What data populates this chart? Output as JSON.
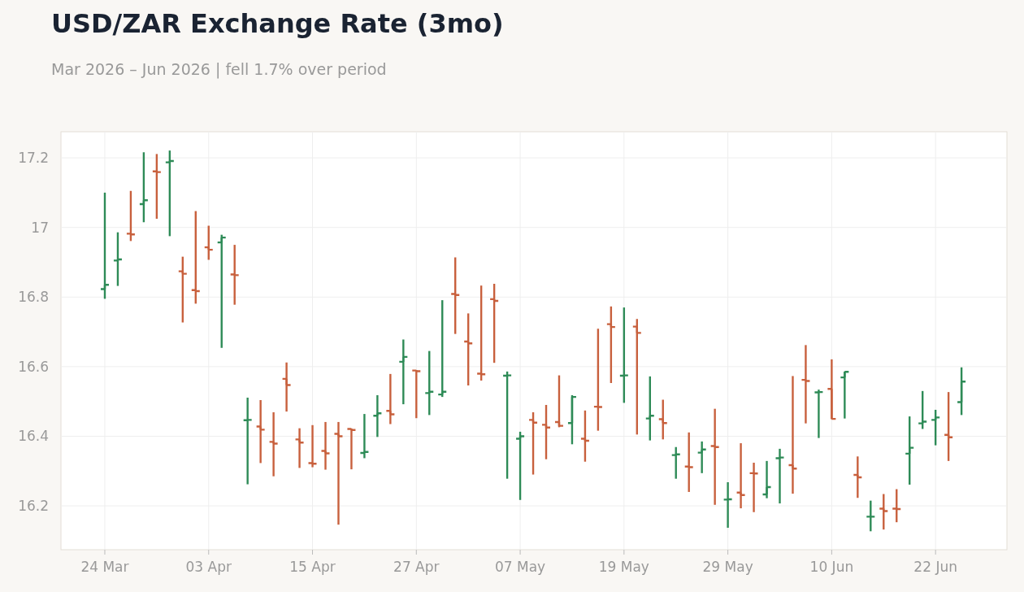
{
  "chart_data": {
    "type": "candlestick",
    "title": "USD/ZAR Exchange Rate (3mo)",
    "subtitle": "Mar 2026 – Jun 2026 | fell 1.7% over period",
    "categories": [
      "24 Mar",
      null,
      null,
      null,
      null,
      null,
      null,
      null,
      "03 Apr",
      null,
      null,
      null,
      null,
      null,
      null,
      null,
      "15 Apr",
      null,
      null,
      null,
      null,
      null,
      null,
      null,
      "27 Apr",
      null,
      null,
      null,
      null,
      null,
      null,
      null,
      "07 May",
      null,
      null,
      null,
      null,
      null,
      null,
      null,
      "19 May",
      null,
      null,
      null,
      null,
      null,
      null,
      null,
      "29 May",
      null,
      null,
      null,
      null,
      null,
      null,
      null,
      "10 Jun",
      null,
      null,
      null,
      null,
      null,
      null,
      null,
      "22 Jun",
      null,
      null
    ],
    "ohlc": [
      [
        16.823,
        17.1,
        16.795,
        16.835
      ],
      [
        16.905,
        16.986,
        16.832,
        16.908
      ],
      [
        16.982,
        17.105,
        16.961,
        16.98
      ],
      [
        17.067,
        17.216,
        17.015,
        17.078
      ],
      [
        17.161,
        17.211,
        17.025,
        17.159
      ],
      [
        17.187,
        17.221,
        16.975,
        17.191
      ],
      [
        16.874,
        16.916,
        16.727,
        16.867
      ],
      [
        16.82,
        17.047,
        16.781,
        16.817
      ],
      [
        16.943,
        17.005,
        16.907,
        16.936
      ],
      [
        16.957,
        16.979,
        16.654,
        16.971
      ],
      [
        16.865,
        16.95,
        16.778,
        16.863
      ],
      [
        16.446,
        16.511,
        16.262,
        16.447
      ],
      [
        16.428,
        16.504,
        16.323,
        16.419
      ],
      [
        16.384,
        16.469,
        16.285,
        16.379
      ],
      [
        16.565,
        16.612,
        16.471,
        16.547
      ],
      [
        16.391,
        16.423,
        16.309,
        16.382
      ],
      [
        16.323,
        16.432,
        16.311,
        16.321
      ],
      [
        16.358,
        16.441,
        16.304,
        16.351
      ],
      [
        16.407,
        16.441,
        16.146,
        16.4
      ],
      [
        16.421,
        16.422,
        16.305,
        16.418
      ],
      [
        16.352,
        16.464,
        16.337,
        16.355
      ],
      [
        16.459,
        16.518,
        16.398,
        16.466
      ],
      [
        16.473,
        16.579,
        16.435,
        16.463
      ],
      [
        16.614,
        16.678,
        16.492,
        16.628
      ],
      [
        16.589,
        16.59,
        16.452,
        16.587
      ],
      [
        16.524,
        16.645,
        16.461,
        16.528
      ],
      [
        16.52,
        16.791,
        16.513,
        16.528
      ],
      [
        16.809,
        16.914,
        16.694,
        16.806
      ],
      [
        16.672,
        16.753,
        16.546,
        16.667
      ],
      [
        16.58,
        16.833,
        16.56,
        16.578
      ],
      [
        16.794,
        16.838,
        16.611,
        16.789
      ],
      [
        16.574,
        16.586,
        16.278,
        16.575
      ],
      [
        16.393,
        16.413,
        16.217,
        16.4
      ],
      [
        16.447,
        16.469,
        16.29,
        16.439
      ],
      [
        16.433,
        16.49,
        16.334,
        16.425
      ],
      [
        16.441,
        16.575,
        16.426,
        16.43
      ],
      [
        16.438,
        16.518,
        16.377,
        16.513
      ],
      [
        16.393,
        16.474,
        16.327,
        16.387
      ],
      [
        16.485,
        16.709,
        16.416,
        16.484
      ],
      [
        16.722,
        16.773,
        16.553,
        16.714
      ],
      [
        16.574,
        16.77,
        16.496,
        16.575
      ],
      [
        16.715,
        16.737,
        16.405,
        16.697
      ],
      [
        16.451,
        16.572,
        16.388,
        16.459
      ],
      [
        16.449,
        16.505,
        16.391,
        16.438
      ],
      [
        16.346,
        16.369,
        16.278,
        16.348
      ],
      [
        16.313,
        16.411,
        16.24,
        16.311
      ],
      [
        16.353,
        16.385,
        16.294,
        16.362
      ],
      [
        16.372,
        16.479,
        16.203,
        16.369
      ],
      [
        16.218,
        16.268,
        16.137,
        16.219
      ],
      [
        16.238,
        16.38,
        16.193,
        16.231
      ],
      [
        16.294,
        16.324,
        16.182,
        16.293
      ],
      [
        16.233,
        16.329,
        16.222,
        16.254
      ],
      [
        16.337,
        16.364,
        16.207,
        16.339
      ],
      [
        16.317,
        16.573,
        16.235,
        16.307
      ],
      [
        16.562,
        16.662,
        16.437,
        16.559
      ],
      [
        16.526,
        16.534,
        16.395,
        16.527
      ],
      [
        16.536,
        16.621,
        16.449,
        16.45
      ],
      [
        16.569,
        16.586,
        16.451,
        16.585
      ],
      [
        16.289,
        16.342,
        16.223,
        16.282
      ],
      [
        16.169,
        16.215,
        16.127,
        16.169
      ],
      [
        16.192,
        16.234,
        16.132,
        16.185
      ],
      [
        16.192,
        16.248,
        16.153,
        16.191
      ],
      [
        16.35,
        16.457,
        16.261,
        16.367
      ],
      [
        16.437,
        16.53,
        16.421,
        16.442
      ],
      [
        16.447,
        16.476,
        16.374,
        16.454
      ],
      [
        16.404,
        16.527,
        16.329,
        16.397
      ],
      [
        16.498,
        16.598,
        16.461,
        16.557
      ]
    ],
    "colors": [
      "#2e8b57",
      "#2e8b57",
      "#c8603d",
      "#2e8b57",
      "#c8603d",
      "#2e8b57",
      "#c8603d",
      "#c8603d",
      "#c8603d",
      "#2e8b57",
      "#c8603d",
      "#2e8b57",
      "#c8603d",
      "#c8603d",
      "#c8603d",
      "#c8603d",
      "#c8603d",
      "#c8603d",
      "#c8603d",
      "#c8603d",
      "#2e8b57",
      "#2e8b57",
      "#c8603d",
      "#2e8b57",
      "#c8603d",
      "#2e8b57",
      "#2e8b57",
      "#c8603d",
      "#c8603d",
      "#c8603d",
      "#c8603d",
      "#2e8b57",
      "#2e8b57",
      "#c8603d",
      "#c8603d",
      "#c8603d",
      "#2e8b57",
      "#c8603d",
      "#c8603d",
      "#c8603d",
      "#2e8b57",
      "#c8603d",
      "#2e8b57",
      "#c8603d",
      "#2e8b57",
      "#c8603d",
      "#2e8b57",
      "#c8603d",
      "#2e8b57",
      "#c8603d",
      "#c8603d",
      "#2e8b57",
      "#2e8b57",
      "#c8603d",
      "#c8603d",
      "#2e8b57",
      "#c8603d",
      "#2e8b57",
      "#c8603d",
      "#2e8b57",
      "#c8603d",
      "#c8603d",
      "#2e8b57",
      "#2e8b57",
      "#2e8b57",
      "#c8603d",
      "#2e8b57"
    ],
    "ylim": [
      16.074,
      17.275
    ],
    "yticks": [
      16.2,
      16.4,
      16.6,
      16.8,
      17,
      17.2
    ],
    "grid": true
  }
}
